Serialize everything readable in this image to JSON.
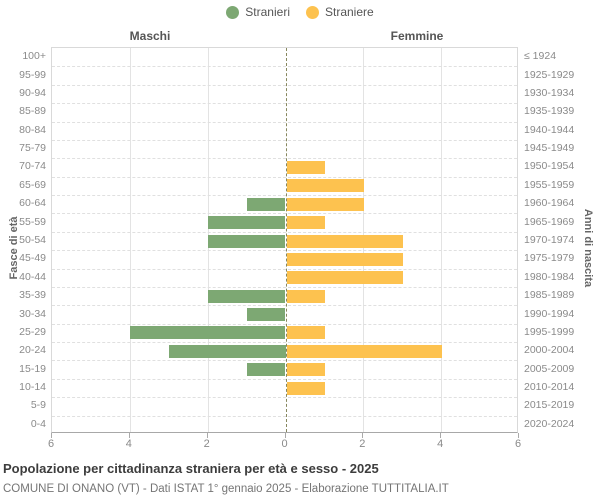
{
  "legend": {
    "items": [
      {
        "label": "Stranieri",
        "color": "#7da873"
      },
      {
        "label": "Straniere",
        "color": "#fdc24f"
      }
    ]
  },
  "headers": {
    "males": "Maschi",
    "females": "Femmine"
  },
  "axes": {
    "left_title": "Fasce di età",
    "right_title": "Anni di nascita",
    "x_tick_labels": [
      "6",
      "4",
      "2",
      "0",
      "2",
      "4",
      "6"
    ],
    "x_tick_offsets": [
      -6,
      -4,
      -2,
      0,
      2,
      4,
      6
    ]
  },
  "chart_data": {
    "type": "bar",
    "subtype": "population-pyramid",
    "title": "Popolazione per cittadinanza straniera per età e sesso - 2025",
    "age_groups": [
      "100+",
      "95-99",
      "90-94",
      "85-89",
      "80-84",
      "75-79",
      "70-74",
      "65-69",
      "60-64",
      "55-59",
      "50-54",
      "45-49",
      "40-44",
      "35-39",
      "30-34",
      "25-29",
      "20-24",
      "15-19",
      "10-14",
      "5-9",
      "0-4"
    ],
    "birth_year_labels": [
      "≤ 1924",
      "1925-1929",
      "1930-1934",
      "1935-1939",
      "1940-1944",
      "1945-1949",
      "1950-1954",
      "1955-1959",
      "1960-1964",
      "1965-1969",
      "1970-1974",
      "1975-1979",
      "1980-1984",
      "1985-1989",
      "1990-1994",
      "1995-1999",
      "2000-2004",
      "2005-2009",
      "2010-2014",
      "2015-2019",
      "2020-2024"
    ],
    "series": [
      {
        "name": "Stranieri",
        "side": "left",
        "color": "#7da873",
        "values": [
          0,
          0,
          0,
          0,
          0,
          0,
          0,
          0,
          1,
          2,
          2,
          0,
          0,
          2,
          1,
          4,
          3,
          1,
          0,
          0,
          0
        ]
      },
      {
        "name": "Straniere",
        "side": "right",
        "color": "#fdc24f",
        "values": [
          0,
          0,
          0,
          0,
          0,
          0,
          1,
          2,
          2,
          1,
          3,
          3,
          3,
          1,
          0,
          1,
          4,
          1,
          1,
          0,
          0
        ]
      }
    ],
    "xlim": [
      0,
      6
    ],
    "grid": true,
    "legend_position": "top"
  },
  "footer": {
    "title": "Popolazione per cittadinanza straniera per età e sesso - 2025",
    "source": "COMUNE DI ONANO (VT) - Dati ISTAT 1° gennaio 2025 - Elaborazione TUTTITALIA.IT"
  }
}
